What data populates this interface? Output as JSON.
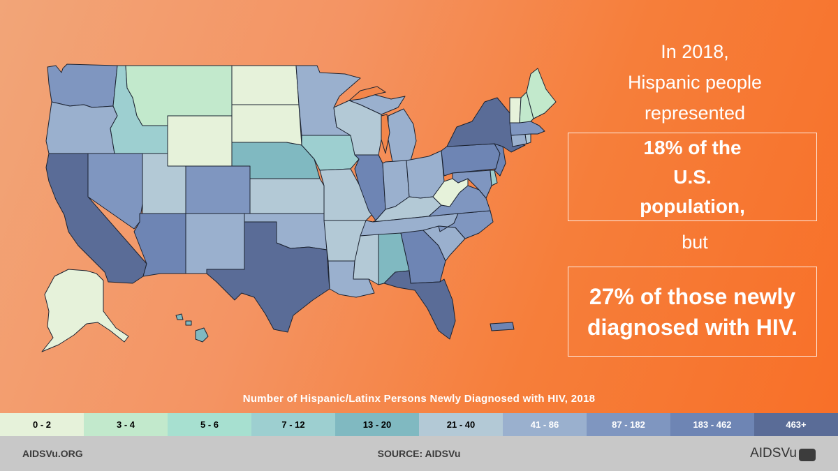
{
  "headline": {
    "line1": "In 2018,",
    "line2": "Hispanic people",
    "line3": "represented"
  },
  "box1": {
    "line1": "18% of the",
    "line2": "U.S. population,"
  },
  "connector": "but",
  "box2": {
    "line1": "27% of those newly",
    "line2": "diagnosed with HIV."
  },
  "legend": {
    "title": "Number of Hispanic/Latinx Persons Newly Diagnosed with HIV, 2018",
    "bins": [
      {
        "label": "0 - 2",
        "color": "#e6f2da",
        "text": "#000000"
      },
      {
        "label": "3 - 4",
        "color": "#c2e9cc",
        "text": "#000000"
      },
      {
        "label": "5 - 6",
        "color": "#a7e0d0",
        "text": "#000000"
      },
      {
        "label": "7 - 12",
        "color": "#9dcfd0",
        "text": "#000000"
      },
      {
        "label": "13 - 20",
        "color": "#80b9c1",
        "text": "#000000"
      },
      {
        "label": "21 - 40",
        "color": "#b3c9d6",
        "text": "#000000"
      },
      {
        "label": "41 - 86",
        "color": "#9ab0ce",
        "text": "#ffffff"
      },
      {
        "label": "87 - 182",
        "color": "#7f96c0",
        "text": "#ffffff"
      },
      {
        "label": "183 - 462",
        "color": "#6e85b4",
        "text": "#ffffff"
      },
      {
        "label": "463+",
        "color": "#5a6c97",
        "text": "#ffffff"
      }
    ]
  },
  "footer": {
    "url": "AIDSVu.ORG",
    "source": "SOURCE: AIDSVu",
    "logo_text": "AIDSVu"
  },
  "map": {
    "states": [
      {
        "id": "WA",
        "bin": 7
      },
      {
        "id": "OR",
        "bin": 6
      },
      {
        "id": "CA",
        "bin": 9
      },
      {
        "id": "NV",
        "bin": 7
      },
      {
        "id": "ID",
        "bin": 3
      },
      {
        "id": "MT",
        "bin": 1
      },
      {
        "id": "WY",
        "bin": 0
      },
      {
        "id": "UT",
        "bin": 5
      },
      {
        "id": "AZ",
        "bin": 8
      },
      {
        "id": "CO",
        "bin": 7
      },
      {
        "id": "NM",
        "bin": 6
      },
      {
        "id": "ND",
        "bin": 0
      },
      {
        "id": "SD",
        "bin": 0
      },
      {
        "id": "NE",
        "bin": 4
      },
      {
        "id": "KS",
        "bin": 5
      },
      {
        "id": "OK",
        "bin": 6
      },
      {
        "id": "TX",
        "bin": 9
      },
      {
        "id": "MN",
        "bin": 6
      },
      {
        "id": "IA",
        "bin": 3
      },
      {
        "id": "MO",
        "bin": 5
      },
      {
        "id": "AR",
        "bin": 5
      },
      {
        "id": "LA",
        "bin": 6
      },
      {
        "id": "WI",
        "bin": 5
      },
      {
        "id": "IL",
        "bin": 8
      },
      {
        "id": "MI",
        "bin": 6
      },
      {
        "id": "IN",
        "bin": 6
      },
      {
        "id": "OH",
        "bin": 6
      },
      {
        "id": "KY",
        "bin": 5
      },
      {
        "id": "TN",
        "bin": 6
      },
      {
        "id": "MS",
        "bin": 5
      },
      {
        "id": "AL",
        "bin": 4
      },
      {
        "id": "GA",
        "bin": 8
      },
      {
        "id": "FL",
        "bin": 9
      },
      {
        "id": "SC",
        "bin": 6
      },
      {
        "id": "NC",
        "bin": 7
      },
      {
        "id": "VA",
        "bin": 7
      },
      {
        "id": "WV",
        "bin": 0
      },
      {
        "id": "PA",
        "bin": 8
      },
      {
        "id": "NY",
        "bin": 9
      },
      {
        "id": "NJ",
        "bin": 8
      },
      {
        "id": "DE",
        "bin": 3
      },
      {
        "id": "MD",
        "bin": 7
      },
      {
        "id": "CT",
        "bin": 6
      },
      {
        "id": "RI",
        "bin": 5
      },
      {
        "id": "MA",
        "bin": 7
      },
      {
        "id": "VT",
        "bin": 0
      },
      {
        "id": "NH",
        "bin": 1
      },
      {
        "id": "ME",
        "bin": 1
      },
      {
        "id": "AK",
        "bin": 0
      },
      {
        "id": "HI",
        "bin": 4
      },
      {
        "id": "PR",
        "bin": 8
      }
    ]
  }
}
